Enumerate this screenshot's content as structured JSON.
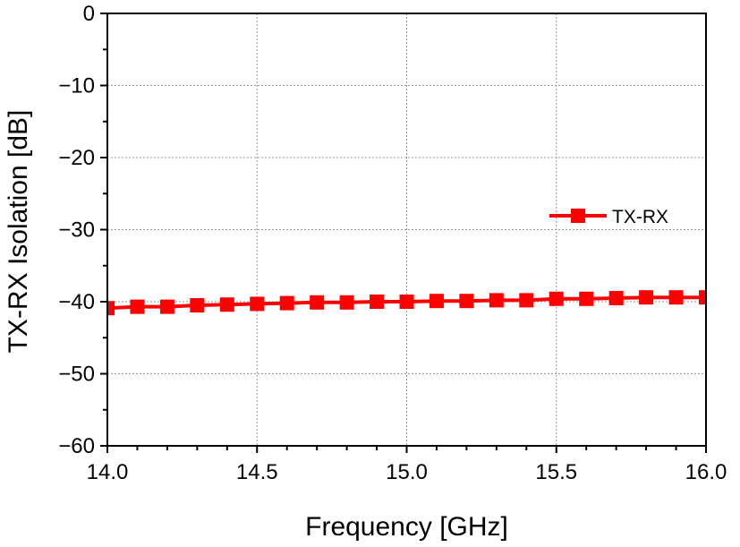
{
  "chart_data": {
    "type": "line",
    "title": "",
    "xlabel": "Frequency [GHz]",
    "ylabel": "TX-RX Isolation [dB]",
    "xlim": [
      14.0,
      16.0
    ],
    "ylim": [
      -60,
      0
    ],
    "xticks": [
      14.0,
      14.5,
      15.0,
      15.5,
      16.0
    ],
    "xtick_labels": [
      "14.0",
      "14.5",
      "15.0",
      "15.5",
      "16.0"
    ],
    "yticks": [
      0,
      -10,
      -20,
      -30,
      -40,
      -50,
      -60
    ],
    "ytick_labels": [
      "0",
      "-10",
      "-20",
      "-30",
      "-40",
      "-50",
      "-60"
    ],
    "grid": true,
    "legend_position": "middle-right",
    "series": [
      {
        "name": "TX-RX",
        "color": "#ff0000",
        "marker": "square",
        "x": [
          14.0,
          14.1,
          14.2,
          14.3,
          14.4,
          14.5,
          14.6,
          14.7,
          14.8,
          14.9,
          15.0,
          15.1,
          15.2,
          15.3,
          15.4,
          15.5,
          15.6,
          15.7,
          15.8,
          15.9,
          16.0
        ],
        "y": [
          -40.9,
          -40.7,
          -40.7,
          -40.5,
          -40.4,
          -40.3,
          -40.2,
          -40.1,
          -40.1,
          -40.0,
          -40.0,
          -39.9,
          -39.9,
          -39.8,
          -39.8,
          -39.6,
          -39.6,
          -39.5,
          -39.4,
          -39.4,
          -39.4
        ]
      }
    ]
  }
}
